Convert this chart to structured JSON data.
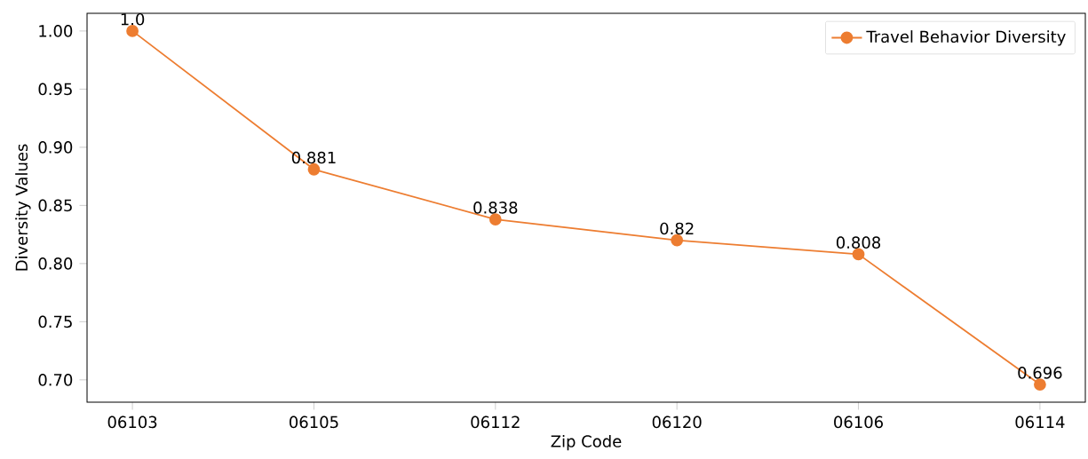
{
  "chart_data": {
    "type": "line",
    "xlabel": "Zip Code",
    "ylabel": "Diversity Values",
    "categories": [
      "06103",
      "06105",
      "06112",
      "06120",
      "06106",
      "06114"
    ],
    "series": [
      {
        "name": "Travel Behavior Diversity",
        "color": "#ed7d31",
        "values": [
          1.0,
          0.881,
          0.838,
          0.82,
          0.808,
          0.696
        ],
        "value_labels": [
          "1.0",
          "0.881",
          "0.838",
          "0.82",
          "0.808",
          "0.696"
        ]
      }
    ],
    "ylim": [
      0.6808,
      1.0152
    ],
    "yticks": [
      {
        "value": 0.7,
        "label": "0.70"
      },
      {
        "value": 0.75,
        "label": "0.75"
      },
      {
        "value": 0.8,
        "label": "0.80"
      },
      {
        "value": 0.85,
        "label": "0.85"
      },
      {
        "value": 0.9,
        "label": "0.90"
      },
      {
        "value": 0.95,
        "label": "0.95"
      },
      {
        "value": 1.0,
        "label": "1.00"
      }
    ],
    "grid": false,
    "legend": "top right",
    "marker": "circle",
    "line_style": "solid"
  }
}
